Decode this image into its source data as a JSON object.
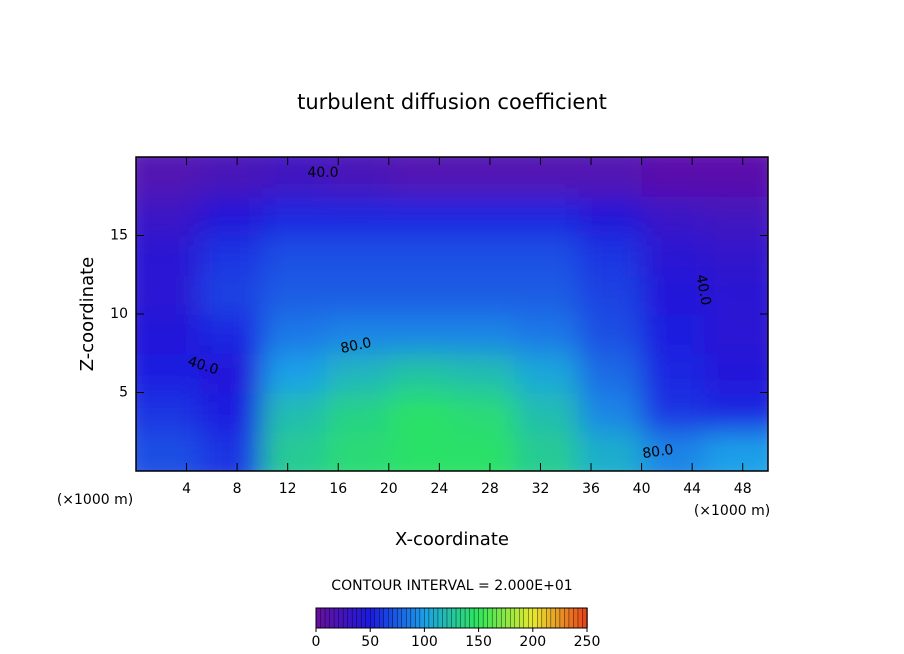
{
  "chart_data": {
    "type": "contour",
    "title": "turbulent diffusion coefficient",
    "x_label": "X-coordinate",
    "y_label": "Z-coordinate",
    "x_unit": "(×1000 m)",
    "y_unit": "(×1000 m)",
    "xlim": [
      0,
      50
    ],
    "ylim": [
      0,
      20
    ],
    "xticks": [
      4,
      8,
      12,
      16,
      20,
      24,
      28,
      32,
      36,
      40,
      44,
      48
    ],
    "yticks": [
      5,
      10,
      15
    ],
    "z": [
      [
        70,
        60,
        130,
        140,
        145,
        145,
        130,
        110,
        90,
        100
      ],
      [
        60,
        50,
        120,
        135,
        145,
        140,
        120,
        90,
        60,
        55
      ],
      [
        50,
        45,
        100,
        115,
        125,
        120,
        105,
        80,
        55,
        45
      ],
      [
        45,
        55,
        85,
        90,
        90,
        90,
        85,
        70,
        50,
        40
      ],
      [
        40,
        65,
        75,
        75,
        75,
        75,
        75,
        65,
        45,
        40
      ],
      [
        40,
        60,
        70,
        70,
        70,
        70,
        70,
        60,
        40,
        35
      ],
      [
        30,
        45,
        55,
        55,
        55,
        55,
        55,
        45,
        30,
        25
      ],
      [
        15,
        20,
        25,
        20,
        15,
        15,
        15,
        15,
        10,
        10
      ]
    ],
    "contour_labels": [
      {
        "value": 40,
        "label": "40.0"
      },
      {
        "value": 40,
        "label": "40.0"
      },
      {
        "value": 40,
        "label": "40.0"
      },
      {
        "value": 80,
        "label": "80.0"
      },
      {
        "value": 80,
        "label": "80.0"
      }
    ],
    "contour_interval": "CONTOUR INTERVAL = 2.000E+01",
    "colorbar_lim": [
      0,
      250
    ],
    "colorbar_ticks": [
      0,
      50,
      100,
      150,
      200,
      250
    ],
    "colormap": [
      "#6a0f9e",
      "#1a1ae0",
      "#1aa0e8",
      "#2ee85a",
      "#e8e82e",
      "#e8401a"
    ]
  }
}
